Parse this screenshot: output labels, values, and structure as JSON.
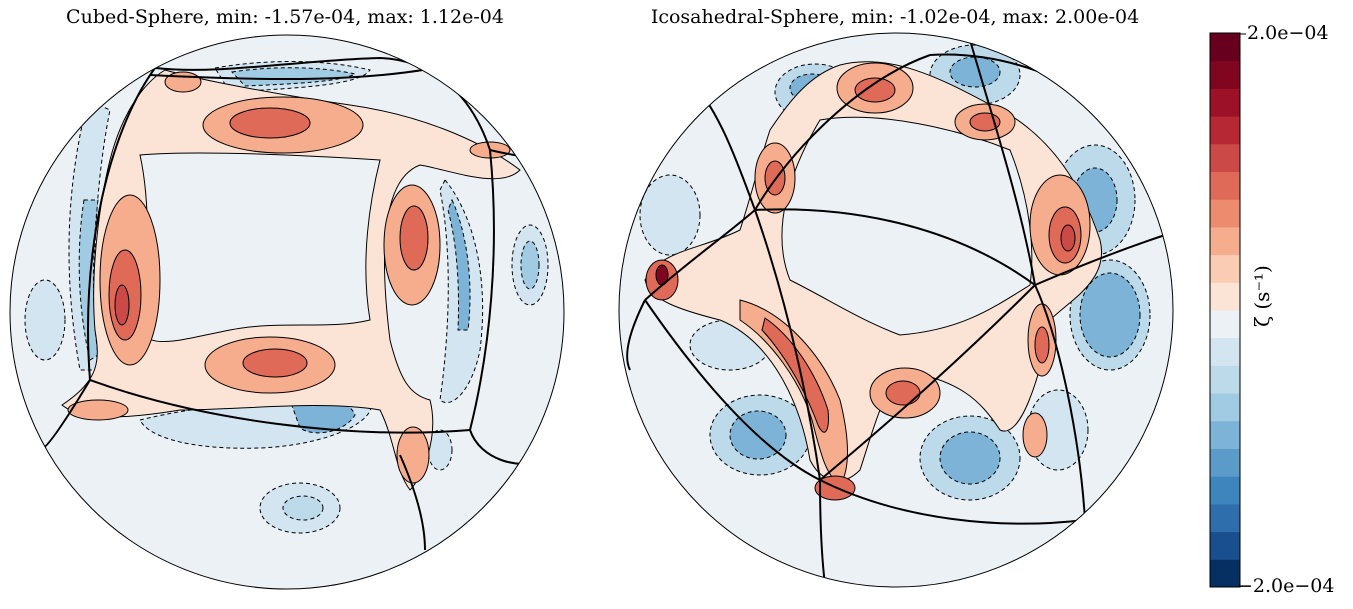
{
  "chart_data": [
    {
      "type": "heatmap",
      "title": "Cubed-Sphere, min: -1.57e-04, max: 1.12e-04",
      "min": -0.000157,
      "max": 0.000112,
      "mesh": "cubed-sphere",
      "contour_lines": true,
      "negative_contours": "dashed",
      "grid_lines": true
    },
    {
      "type": "heatmap",
      "title": "Icosahedral-Sphere, min: -1.02e-04, max: 2.00e-04",
      "min": -0.000102,
      "max": 0.0002,
      "mesh": "icosahedral",
      "contour_lines": true,
      "negative_contours": "dashed",
      "grid_lines": true
    }
  ],
  "colorbar": {
    "label": "ζ (s⁻¹)",
    "max_label": "2.0e−04",
    "min_label": "−2.0e−04",
    "vmin": -0.0002,
    "vmax": 0.0002,
    "colormap": "RdBu_r",
    "levels": 20,
    "placement": "right"
  },
  "colors": {
    "levels": [
      "#053061",
      "#1a4f8f",
      "#2f6ead",
      "#3e85bd",
      "#5a9bca",
      "#7cb3d7",
      "#a0cbe2",
      "#bcdaea",
      "#d2e5f0",
      "#ebf1f5",
      "#fbe4d6",
      "#fbccb4",
      "#f5ad8e",
      "#ec8b6d",
      "#de6a57",
      "#cb4a47",
      "#b72835",
      "#9c1127",
      "#80061f",
      "#67001f"
    ]
  }
}
